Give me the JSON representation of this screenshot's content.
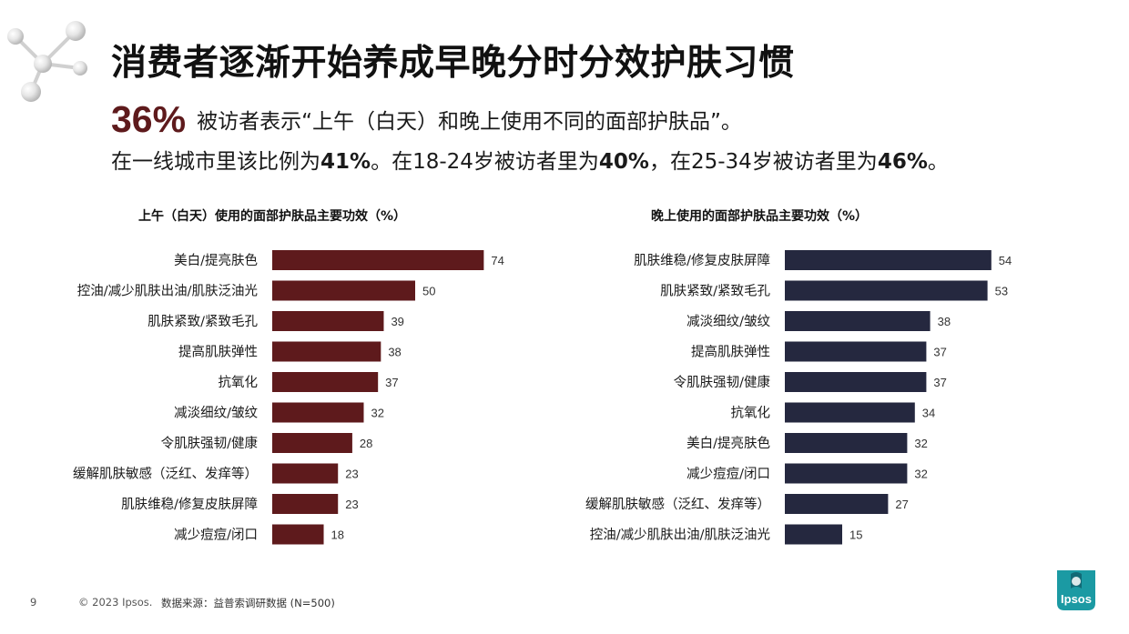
{
  "header": {
    "title": "消费者逐渐开始养成早晚分时分效护肤习惯",
    "highlight_pct": "36%",
    "subtitle_line1": "被访者表示“上午（白天）和晚上使用不同的面部护肤品”。",
    "subtitle_line2": {
      "p1": "在一线城市里该比例为",
      "v1": "41%",
      "p2": "。在18-24岁被访者里为",
      "v2": "40%",
      "p3": "，在25-34岁被访者里为",
      "v3": "46%",
      "p4": "。"
    }
  },
  "chart_data": [
    {
      "type": "bar",
      "orientation": "horizontal",
      "title": "上午（白天）使用的面部护肤品主要功效（%）",
      "color": "#5e1a1c",
      "categories": [
        "美白/提亮肤色",
        "控油/减少肌肤出油/肌肤泛油光",
        "肌肤紧致/紧致毛孔",
        "提高肌肤弹性",
        "抗氧化",
        "减淡细纹/皱纹",
        "令肌肤强韧/健康",
        "缓解肌肤敏感（泛红、发痒等）",
        "肌肤维稳/修复皮肤屏障",
        "减少痘痘/闭口"
      ],
      "values": [
        74,
        50,
        39,
        38,
        37,
        32,
        28,
        23,
        23,
        18
      ],
      "xlim": [
        0,
        100
      ]
    },
    {
      "type": "bar",
      "orientation": "horizontal",
      "title": "晚上使用的面部护肤品主要功效（%）",
      "color": "#25283f",
      "categories": [
        "肌肤维稳/修复皮肤屏障",
        "肌肤紧致/紧致毛孔",
        "减淡细纹/皱纹",
        "提高肌肤弹性",
        "令肌肤强韧/健康",
        "抗氧化",
        "美白/提亮肤色",
        "减少痘痘/闭口",
        "缓解肌肤敏感（泛红、发痒等）",
        "控油/减少肌肤出油/肌肤泛油光"
      ],
      "values": [
        54,
        53,
        38,
        37,
        37,
        34,
        32,
        32,
        27,
        15
      ],
      "xlim": [
        0,
        100
      ]
    }
  ],
  "footer": {
    "page_number": "9",
    "copyright": "© 2023 Ipsos.",
    "source": "数据来源：益普索调研数据 (N=500)"
  },
  "logo": {
    "text": "Ipsos",
    "color": "#1b9aa3",
    "icon": "ipsos-logo-icon"
  }
}
